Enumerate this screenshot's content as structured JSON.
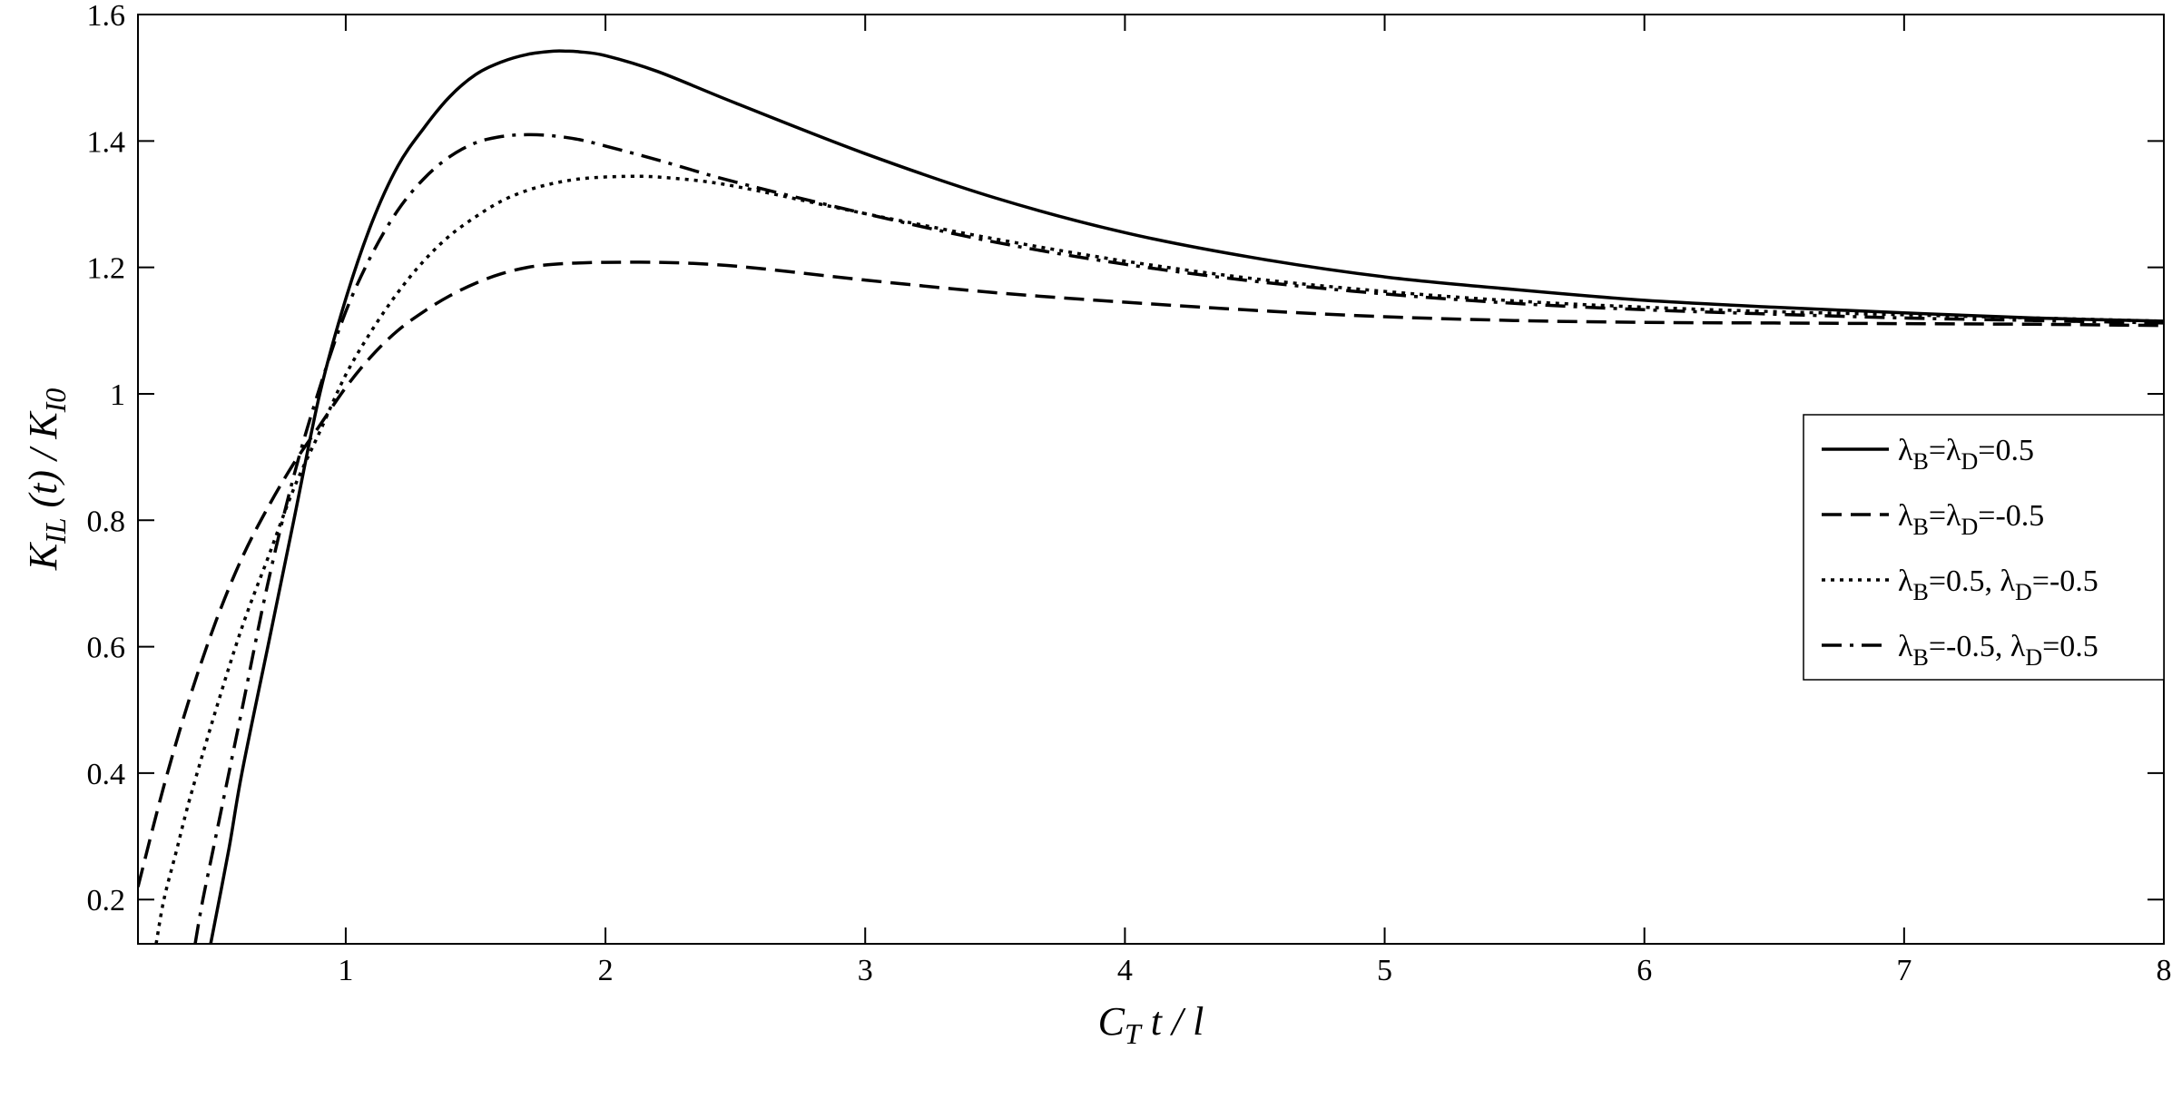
{
  "chart_data": {
    "type": "line",
    "xlabel": {
      "main": "C",
      "sub": "T",
      "rest": " t / l"
    },
    "ylabel": {
      "k": "K",
      "k_sub": "IL",
      "mid": " (t) / ",
      "k2": "K",
      "k2_sub": "I0"
    },
    "xlim": [
      0.2,
      8
    ],
    "ylim": [
      0.13,
      1.6
    ],
    "x_ticks": [
      "1",
      "2",
      "3",
      "4",
      "5",
      "6",
      "7",
      "8"
    ],
    "y_ticks": [
      "0.2",
      "0.4",
      "0.6",
      "0.8",
      "1",
      "1.2",
      "1.4",
      "1.6"
    ],
    "grid": false,
    "legend_position": "right",
    "series": [
      {
        "name": "λB=λD=0.5",
        "legend": [
          {
            "t": "λ"
          },
          {
            "t": "B",
            "sub": true
          },
          {
            "t": "=λ"
          },
          {
            "t": "D",
            "sub": true
          },
          {
            "t": "=0.5"
          }
        ],
        "dash": "solid",
        "x": [
          0.48,
          0.55,
          0.6,
          0.7,
          0.8,
          0.9,
          1.0,
          1.1,
          1.2,
          1.3,
          1.4,
          1.5,
          1.6,
          1.7,
          1.8,
          1.85,
          1.9,
          2.0,
          2.2,
          2.5,
          3.0,
          3.5,
          4.0,
          4.5,
          5.0,
          5.5,
          6.0,
          6.5,
          7.0,
          7.5,
          8.0
        ],
        "y": [
          0.13,
          0.28,
          0.4,
          0.6,
          0.8,
          1.0,
          1.15,
          1.27,
          1.36,
          1.42,
          1.47,
          1.505,
          1.525,
          1.537,
          1.542,
          1.542,
          1.541,
          1.535,
          1.51,
          1.46,
          1.38,
          1.31,
          1.255,
          1.215,
          1.185,
          1.165,
          1.148,
          1.137,
          1.128,
          1.12,
          1.115
        ]
      },
      {
        "name": "λB=λD=-0.5",
        "legend": [
          {
            "t": "λ"
          },
          {
            "t": "B",
            "sub": true
          },
          {
            "t": "=λ"
          },
          {
            "t": "D",
            "sub": true
          },
          {
            "t": "=-0.5"
          }
        ],
        "dash": "dashed",
        "x": [
          0.2,
          0.3,
          0.4,
          0.5,
          0.6,
          0.7,
          0.8,
          0.9,
          1.0,
          1.1,
          1.2,
          1.3,
          1.4,
          1.5,
          1.6,
          1.7,
          1.8,
          1.9,
          2.0,
          2.2,
          2.4,
          2.6,
          3.0,
          3.5,
          4.0,
          4.5,
          5.0,
          5.5,
          6.0,
          6.5,
          7.0,
          7.5,
          8.0
        ],
        "y": [
          0.22,
          0.38,
          0.52,
          0.64,
          0.74,
          0.82,
          0.89,
          0.95,
          1.01,
          1.06,
          1.1,
          1.13,
          1.155,
          1.175,
          1.19,
          1.2,
          1.205,
          1.207,
          1.208,
          1.208,
          1.205,
          1.198,
          1.18,
          1.16,
          1.145,
          1.132,
          1.122,
          1.116,
          1.113,
          1.112,
          1.111,
          1.11,
          1.108
        ]
      },
      {
        "name": "λB=0.5, λD=-0.5",
        "legend": [
          {
            "t": "λ"
          },
          {
            "t": "B",
            "sub": true
          },
          {
            "t": "=0.5,  λ"
          },
          {
            "t": "D",
            "sub": true
          },
          {
            "t": "=-0.5"
          }
        ],
        "dash": "dotted",
        "x": [
          0.27,
          0.3,
          0.35,
          0.4,
          0.5,
          0.6,
          0.7,
          0.8,
          0.9,
          1.0,
          1.1,
          1.2,
          1.3,
          1.4,
          1.5,
          1.6,
          1.7,
          1.8,
          1.9,
          2.0,
          2.1,
          2.2,
          2.4,
          2.6,
          3.0,
          3.5,
          4.0,
          4.5,
          5.0,
          5.5,
          6.0,
          6.5,
          7.0,
          7.5,
          8.0
        ],
        "y": [
          0.13,
          0.2,
          0.28,
          0.36,
          0.5,
          0.63,
          0.74,
          0.85,
          0.94,
          1.03,
          1.1,
          1.16,
          1.21,
          1.25,
          1.28,
          1.305,
          1.322,
          1.333,
          1.34,
          1.343,
          1.344,
          1.343,
          1.335,
          1.32,
          1.285,
          1.245,
          1.21,
          1.182,
          1.162,
          1.147,
          1.137,
          1.13,
          1.125,
          1.12,
          1.115
        ]
      },
      {
        "name": "λB=-0.5, λD=0.5",
        "legend": [
          {
            "t": "λ"
          },
          {
            "t": "B",
            "sub": true
          },
          {
            "t": "=-0.5,  λ"
          },
          {
            "t": "D",
            "sub": true
          },
          {
            "t": "=0.5"
          }
        ],
        "dash": "dashdot",
        "x": [
          0.42,
          0.45,
          0.5,
          0.6,
          0.7,
          0.8,
          0.9,
          1.0,
          1.1,
          1.2,
          1.3,
          1.4,
          1.5,
          1.6,
          1.7,
          1.8,
          1.9,
          2.0,
          2.2,
          2.5,
          3.0,
          3.5,
          4.0,
          4.5,
          5.0,
          5.5,
          6.0,
          6.5,
          7.0,
          7.5,
          8.0
        ],
        "y": [
          0.13,
          0.2,
          0.3,
          0.5,
          0.7,
          0.87,
          1.01,
          1.13,
          1.22,
          1.29,
          1.34,
          1.375,
          1.397,
          1.407,
          1.41,
          1.408,
          1.402,
          1.392,
          1.37,
          1.335,
          1.285,
          1.24,
          1.205,
          1.178,
          1.158,
          1.143,
          1.133,
          1.126,
          1.12,
          1.116,
          1.112
        ]
      }
    ]
  }
}
